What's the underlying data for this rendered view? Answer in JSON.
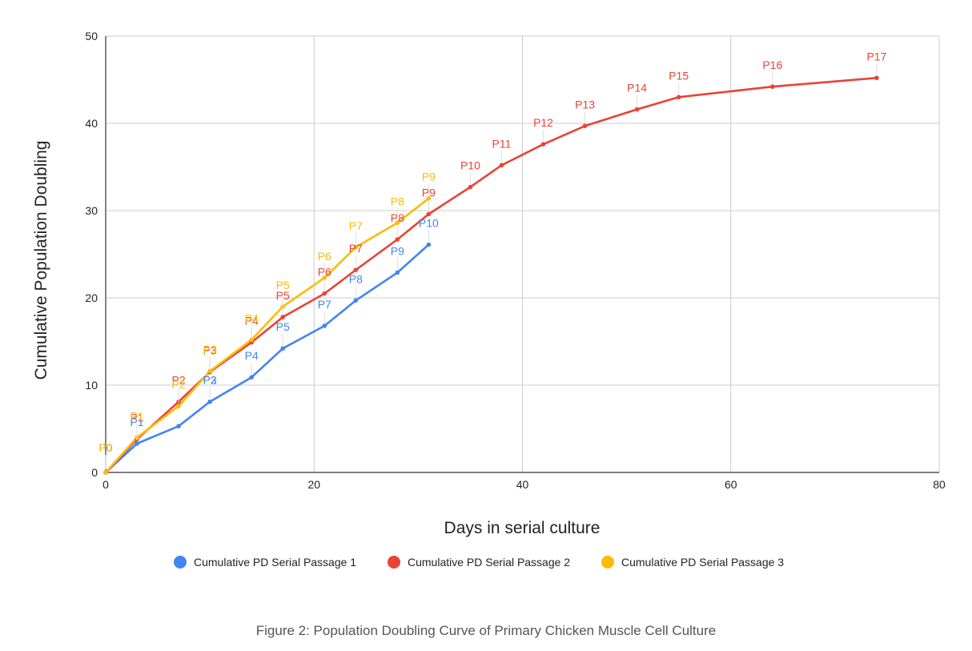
{
  "chart_data": {
    "type": "line",
    "title": "",
    "xlabel": "Days in serial culture",
    "ylabel": "Cumulative Population Doubling",
    "xlim": [
      0,
      80
    ],
    "ylim": [
      0,
      50
    ],
    "x_ticks": [
      "0",
      "20",
      "40",
      "60",
      "80"
    ],
    "y_ticks": [
      "0",
      "10",
      "20",
      "30",
      "40",
      "50"
    ],
    "grid": true,
    "legend_position": "bottom",
    "series": [
      {
        "name": "Cumulative PD Serial Passage 1",
        "color": "#4285F4",
        "x": [
          0,
          3,
          7,
          10,
          14,
          17,
          21,
          24,
          28,
          31
        ],
        "y": [
          0,
          3.3,
          5.3,
          8.1,
          10.9,
          14.2,
          16.8,
          19.7,
          22.9,
          26.1
        ],
        "labels": [
          "P0",
          "P1",
          "P2",
          "P3",
          "P4",
          "P5",
          "P7",
          "P8",
          "P9",
          "P10"
        ],
        "label_points": [
          0,
          1,
          3,
          3,
          4,
          5,
          6,
          7,
          8,
          9
        ]
      },
      {
        "name": "Cumulative PD Serial Passage 2",
        "color": "#EA4335",
        "x": [
          0,
          3,
          7,
          10,
          14,
          17,
          21,
          24,
          28,
          31,
          35,
          38,
          42,
          46,
          51,
          55,
          64,
          74
        ],
        "y": [
          0,
          3.8,
          8.1,
          11.5,
          14.9,
          17.8,
          20.5,
          23.2,
          26.7,
          29.6,
          32.7,
          35.2,
          37.6,
          39.7,
          41.6,
          43.0,
          44.2,
          45.2
        ],
        "labels": [
          "P0",
          "P1",
          "P2",
          "P3",
          "P4",
          "P5",
          "P6",
          "P7",
          "P8",
          "P9",
          "P10",
          "P11",
          "P12",
          "P13",
          "P14",
          "P15",
          "P16",
          "P17"
        ]
      },
      {
        "name": "Cumulative PD Serial Passage 3",
        "color": "#FBBC04",
        "x": [
          0,
          3,
          7,
          10,
          14,
          17,
          21,
          24,
          28,
          31
        ],
        "y": [
          0,
          4.0,
          7.6,
          11.6,
          15.2,
          19.0,
          22.3,
          25.8,
          28.6,
          31.4
        ],
        "labels": [
          "P0",
          "P1",
          "P2",
          "P3",
          "P4",
          "P5",
          "P6",
          "P7",
          "P8",
          "P9"
        ]
      }
    ]
  },
  "caption": "Figure 2: Population Doubling Curve of Primary Chicken Muscle Cell Culture"
}
